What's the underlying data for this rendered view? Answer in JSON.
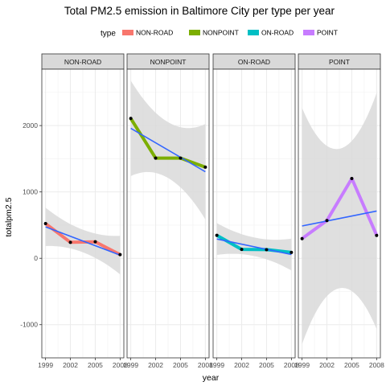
{
  "chart_data": {
    "type": "line",
    "title": "Total PM2.5 emission in Baltimore City per type per year",
    "xlabel": "year",
    "ylabel": "totalpm2.5",
    "legend": {
      "title": "type",
      "position": "top"
    },
    "x": [
      1999,
      2002,
      2005,
      2008
    ],
    "x_ticks": [
      "1999",
      "2002",
      "2005",
      "2008"
    ],
    "ylim": [
      -1500,
      2850
    ],
    "y_ticks": [
      -1000,
      0,
      1000,
      2000
    ],
    "y_tick_labels": [
      "-1000",
      "0",
      "1000",
      "2000"
    ],
    "grid": true,
    "facets": [
      "NON-ROAD",
      "NONPOINT",
      "ON-ROAD",
      "POINT"
    ],
    "series": [
      {
        "name": "NON-ROAD",
        "color": "#F8766D",
        "values": [
          522.94,
          240.85,
          248.93,
          55.82
        ],
        "fit": [
          474,
          332,
          190,
          48
        ],
        "ci_half": [
          290,
          170,
          170,
          290
        ]
      },
      {
        "name": "NONPOINT",
        "color": "#7CAE00",
        "values": [
          2107.63,
          1509.5,
          1509.5,
          1373.21
        ],
        "fit": [
          1958,
          1740,
          1522,
          1304
        ],
        "ci_half": [
          720,
          420,
          420,
          720
        ]
      },
      {
        "name": "ON-ROAD",
        "color": "#00BFC4",
        "values": [
          346.82,
          134.31,
          130.43,
          88.28
        ],
        "fit": [
          291,
          213,
          135,
          57
        ],
        "ci_half": [
          240,
          140,
          140,
          240
        ]
      },
      {
        "name": "POINT",
        "color": "#C77CFF",
        "values": [
          296.8,
          569.26,
          1202.49,
          344.98
        ],
        "fit": [
          487,
          562,
          637,
          712
        ],
        "ci_half": [
          1780,
          1050,
          1050,
          1780
        ]
      }
    ],
    "fit_color": "#3366FF",
    "band_color": "#d9d9d9"
  }
}
